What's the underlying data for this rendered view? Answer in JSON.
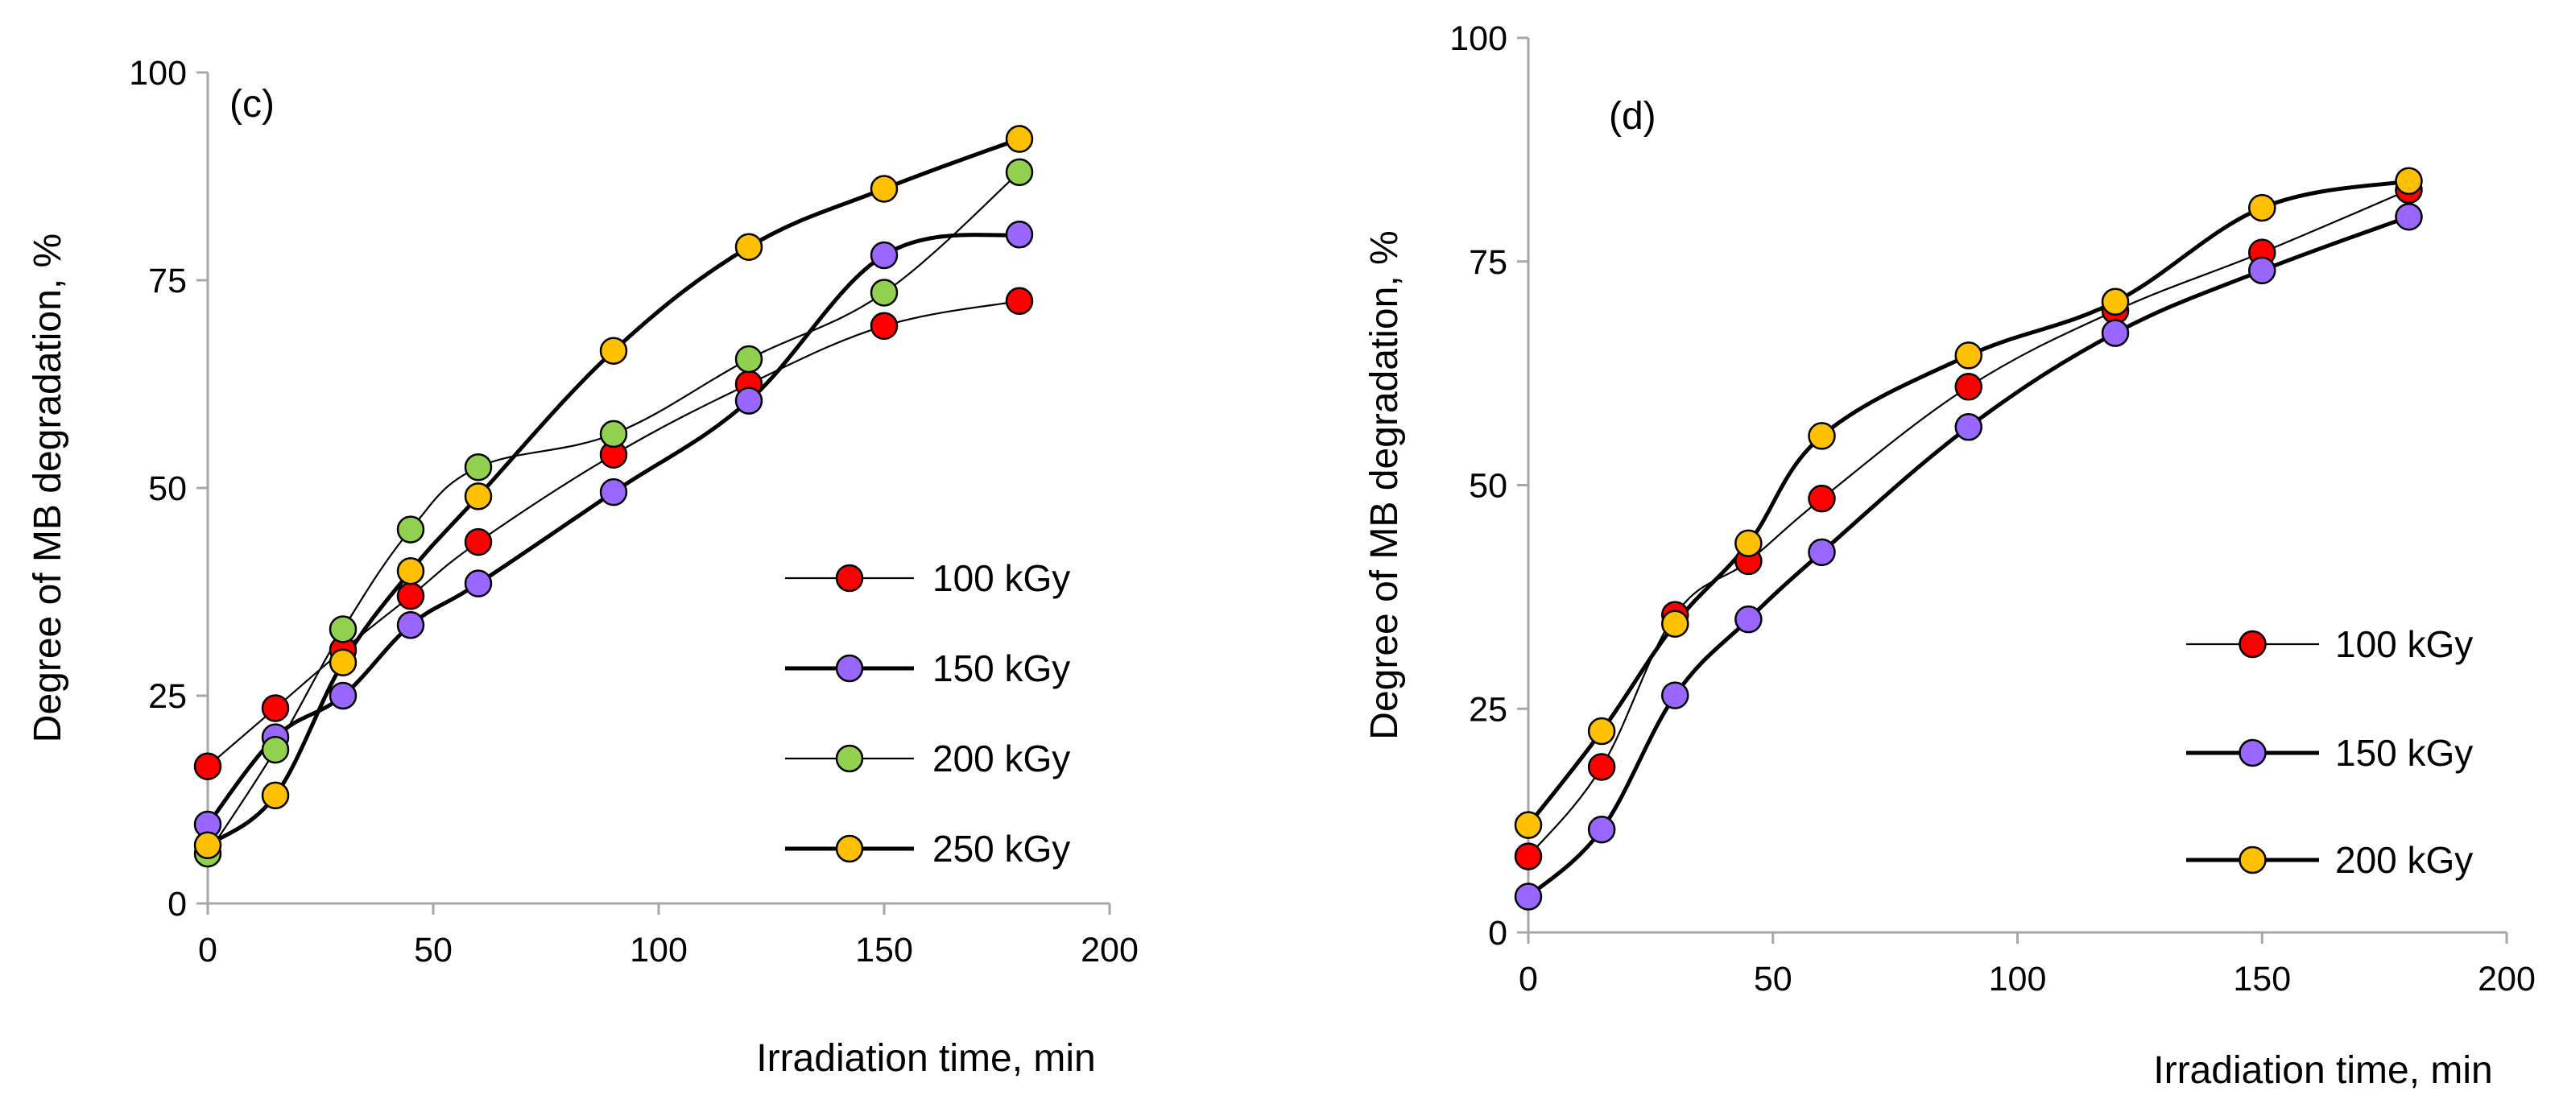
{
  "chart_data": [
    {
      "type": "line",
      "panel_label": "(c)",
      "xlabel": "Irradiation time, min",
      "ylabel": "Degree of MB degradation, %",
      "xlim": [
        0,
        200
      ],
      "ylim": [
        0,
        100
      ],
      "xticks": [
        0,
        50,
        100,
        150,
        200
      ],
      "yticks": [
        0,
        25,
        50,
        75,
        100
      ],
      "legend_position": "right",
      "x": [
        0,
        15,
        30,
        45,
        60,
        90,
        120,
        150,
        180
      ],
      "series": [
        {
          "name": "100 kGy",
          "color": "#ff0000",
          "line": "thin",
          "values": [
            16.5,
            23.5,
            30.5,
            37,
            43.5,
            54,
            62.5,
            69.5,
            72.5
          ]
        },
        {
          "name": "150 kGy",
          "color": "#9966ff",
          "line": "thick",
          "values": [
            9.5,
            20,
            25,
            33.5,
            38.5,
            49.5,
            60.5,
            78,
            80.5
          ]
        },
        {
          "name": "200 kGy",
          "color": "#92d050",
          "line": "thin",
          "values": [
            6,
            18.5,
            33,
            45,
            52.5,
            56.5,
            65.5,
            73.5,
            88
          ]
        },
        {
          "name": "250 kGy",
          "color": "#ffc000",
          "line": "thick",
          "values": [
            7,
            13,
            29,
            40,
            49,
            66.5,
            79,
            86,
            92
          ]
        }
      ]
    },
    {
      "type": "line",
      "panel_label": "(d)",
      "xlabel": "Irradiation time, min",
      "ylabel": "Degree of MB degradation, %",
      "xlim": [
        0,
        200
      ],
      "ylim": [
        0,
        100
      ],
      "xticks": [
        0,
        50,
        100,
        150,
        200
      ],
      "yticks": [
        0,
        25,
        50,
        75,
        100
      ],
      "legend_position": "bottom-right",
      "x": [
        0,
        15,
        30,
        45,
        60,
        90,
        120,
        150,
        180
      ],
      "series": [
        {
          "name": "100 kGy",
          "color": "#ff0000",
          "line": "thin",
          "values": [
            8.5,
            18.5,
            35.5,
            41.5,
            48.5,
            61,
            69.5,
            76,
            83
          ]
        },
        {
          "name": "150 kGy",
          "color": "#9966ff",
          "line": "thick",
          "values": [
            4,
            11.5,
            26.5,
            35,
            42.5,
            56.5,
            67,
            74,
            80
          ]
        },
        {
          "name": "200 kGy",
          "color": "#ffc000",
          "line": "thick",
          "values": [
            12,
            22.5,
            34.5,
            43.5,
            55.5,
            64.5,
            70.5,
            81,
            84
          ]
        }
      ]
    }
  ]
}
